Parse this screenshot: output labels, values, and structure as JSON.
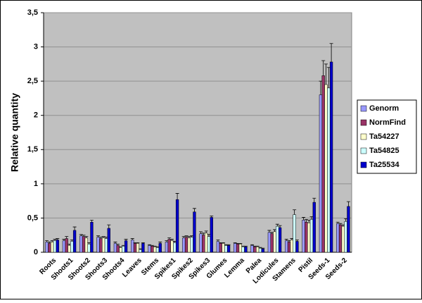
{
  "chart_data": {
    "type": "bar",
    "y_label": "Relative quantity",
    "categories": [
      "Roots",
      "Shoots1",
      "Shoots2",
      "Shoots3",
      "Shoots4",
      "Leaves",
      "Stems",
      "Spikes1",
      "Spikes2",
      "Spikes3",
      "Glumes",
      "Lemma",
      "Palea",
      "Lodicules",
      "Stamens",
      "Pistil",
      "Seeds-1",
      "Seeds-2"
    ],
    "series": [
      {
        "name": "Genorm",
        "color": "#9999ff",
        "values": [
          0.15,
          0.17,
          0.24,
          0.22,
          0.13,
          0.18,
          0.1,
          0.15,
          0.21,
          0.27,
          0.16,
          0.13,
          0.1,
          0.29,
          0.17,
          0.47,
          2.3,
          0.42
        ],
        "errors": [
          0.02,
          0.02,
          0.02,
          0.02,
          0.02,
          0.02,
          0.01,
          0.02,
          0.02,
          0.03,
          0.02,
          0.01,
          0.01,
          0.03,
          0.02,
          0.04,
          0.2,
          0.02
        ]
      },
      {
        "name": "NormFind",
        "color": "#993366",
        "values": [
          0.13,
          0.2,
          0.23,
          0.2,
          0.1,
          0.13,
          0.09,
          0.19,
          0.22,
          0.25,
          0.13,
          0.12,
          0.08,
          0.27,
          0.15,
          0.44,
          2.58,
          0.4
        ],
        "errors": [
          0.02,
          0.03,
          0.02,
          0.02,
          0.02,
          0.01,
          0.01,
          0.02,
          0.02,
          0.03,
          0.01,
          0.01,
          0.01,
          0.02,
          0.02,
          0.04,
          0.22,
          0.02
        ]
      },
      {
        "name": "Ta54227",
        "color": "#ffffcc",
        "values": [
          0.15,
          0.1,
          0.21,
          0.21,
          0.07,
          0.13,
          0.08,
          0.17,
          0.21,
          0.28,
          0.13,
          0.12,
          0.08,
          0.3,
          0.18,
          0.43,
          2.45,
          0.38
        ],
        "errors": [
          0.02,
          0.02,
          0.02,
          0.02,
          0.01,
          0.01,
          0.01,
          0.02,
          0.02,
          0.03,
          0.01,
          0.01,
          0.01,
          0.03,
          0.02,
          0.04,
          0.3,
          0.02
        ]
      },
      {
        "name": "Ta54825",
        "color": "#ccffff",
        "values": [
          0.17,
          0.16,
          0.12,
          0.2,
          0.09,
          0.04,
          0.07,
          0.14,
          0.22,
          0.23,
          0.1,
          0.08,
          0.06,
          0.38,
          0.55,
          0.48,
          2.4,
          0.45
        ],
        "errors": [
          0.02,
          0.02,
          0.02,
          0.02,
          0.01,
          0.01,
          0.01,
          0.02,
          0.02,
          0.03,
          0.01,
          0.01,
          0.01,
          0.03,
          0.07,
          0.04,
          0.3,
          0.04
        ]
      },
      {
        "name": "Ta25534",
        "color": "#0000cc",
        "values": [
          0.18,
          0.32,
          0.44,
          0.35,
          0.17,
          0.13,
          0.13,
          0.77,
          0.59,
          0.51,
          0.1,
          0.08,
          0.05,
          0.36,
          0.16,
          0.73,
          2.78,
          0.67
        ],
        "errors": [
          0.02,
          0.05,
          0.03,
          0.05,
          0.02,
          0.01,
          0.02,
          0.09,
          0.05,
          0.02,
          0.01,
          0.01,
          0.01,
          0.03,
          0.02,
          0.06,
          0.27,
          0.07
        ]
      }
    ],
    "ylim": [
      0,
      3.5
    ],
    "yticks": [
      0,
      {
        "value": 0.5,
        "label": "0,5"
      },
      1,
      {
        "value": 1.5,
        "label": "1,5"
      },
      2,
      {
        "value": 2.5,
        "label": "2,5"
      },
      3,
      {
        "value": 3.5,
        "label": "3,5"
      }
    ],
    "grid": true,
    "legend": "right"
  }
}
